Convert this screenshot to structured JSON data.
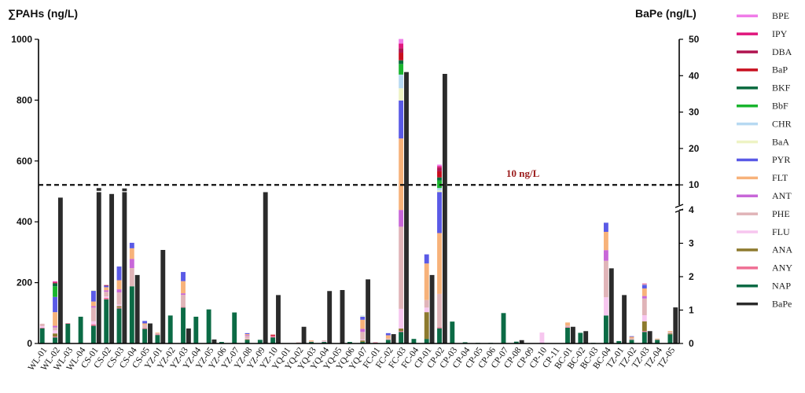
{
  "chart_data": {
    "type": "bar",
    "stacked": true,
    "left_axis": {
      "title": "∑PAHs (ng/L)",
      "ylim": [
        0,
        1000
      ],
      "ticks": [
        0,
        200,
        400,
        600,
        800,
        1000
      ]
    },
    "right_axis": {
      "title": "BaPe (ng/L)",
      "broken": true,
      "lower_segment": {
        "range": [
          0,
          4
        ],
        "ticks": [
          0,
          1,
          2,
          3,
          4
        ]
      },
      "upper_segment": {
        "range": [
          4,
          50
        ],
        "ticks": [
          10,
          20,
          30,
          40,
          50
        ]
      }
    },
    "reference_line": {
      "value": 10,
      "axis": "right",
      "label": "10 ng/L",
      "color": "#9b1c1c",
      "style": "dashed"
    },
    "categories": [
      "WL-01",
      "WL-02",
      "WL-03",
      "WL-04",
      "CS-01",
      "CS-02",
      "CS-03",
      "CS-04",
      "CS-05",
      "YZ-01",
      "YZ-02",
      "YZ-03",
      "YZ-04",
      "YZ-05",
      "YZ-06",
      "YZ-07",
      "YZ-08",
      "YZ-09",
      "YZ-10",
      "YQ-01",
      "YQ-02",
      "YQ-03",
      "YQ-04",
      "YQ-05",
      "YQ-06",
      "YQ-07",
      "FC-01",
      "FC-02",
      "FC-03",
      "FC-04",
      "CP-01",
      "CP-02",
      "CP-03",
      "CP-04",
      "CP-05",
      "CP-06",
      "CP-07",
      "CP-08",
      "CP-09",
      "CP-10",
      "CP-11",
      "BC-01",
      "BC-02",
      "BC-03",
      "BC-04",
      "TZ-01",
      "TZ-02",
      "TZ-03",
      "TZ-04",
      "TZ-05"
    ],
    "series_order": [
      "NAP",
      "ANY",
      "ANA",
      "FLU",
      "PHE",
      "ANT",
      "FLT",
      "PYR",
      "BaA",
      "CHR",
      "BbF",
      "BKF",
      "BaP",
      "DBA",
      "IPY",
      "BPE"
    ],
    "legend_order": [
      "BPE",
      "IPY",
      "DBA",
      "BaP",
      "BKF",
      "BbF",
      "CHR",
      "BaA",
      "PYR",
      "FLT",
      "ANT",
      "PHE",
      "FLU",
      "ANA",
      "ANY",
      "NAP",
      "BaPe"
    ],
    "colors": {
      "BPE": "#f07ce8",
      "IPY": "#e0177d",
      "DBA": "#b01350",
      "BaP": "#c80e1e",
      "BKF": "#0a6a3e",
      "BbF": "#19b52e",
      "CHR": "#b7d9f2",
      "BaA": "#eef3c4",
      "PYR": "#5a5ae6",
      "FLT": "#f7b27a",
      "ANT": "#c867d8",
      "PHE": "#e0b4b8",
      "FLU": "#f7c6ef",
      "ANA": "#8d7a2e",
      "ANY": "#ef6f94",
      "NAP": "#0b6b45",
      "BaPe": "#2b2b2b"
    },
    "series": [
      {
        "name": "NAP",
        "values": [
          50,
          20,
          65,
          88,
          58,
          145,
          115,
          188,
          48,
          28,
          92,
          118,
          88,
          112,
          5,
          102,
          12,
          12,
          20,
          0,
          2,
          5,
          5,
          0,
          5,
          5,
          2,
          12,
          38,
          15,
          15,
          50,
          72,
          4,
          2,
          2,
          100,
          6,
          0,
          0,
          0,
          52,
          35,
          2,
          92,
          8,
          12,
          38,
          12,
          30
        ]
      },
      {
        "name": "ANY",
        "values": [
          2,
          3,
          2,
          0,
          5,
          5,
          3,
          0,
          3,
          2,
          0,
          2,
          0,
          0,
          0,
          0,
          0,
          0,
          6,
          0,
          0,
          0,
          0,
          0,
          0,
          0,
          2,
          0,
          3,
          0,
          0,
          3,
          0,
          0,
          0,
          0,
          0,
          0,
          0,
          0,
          0,
          2,
          0,
          0,
          0,
          0,
          0,
          3,
          0,
          0
        ]
      },
      {
        "name": "ANA",
        "values": [
          0,
          10,
          0,
          0,
          0,
          0,
          5,
          0,
          0,
          0,
          0,
          0,
          0,
          0,
          0,
          0,
          2,
          0,
          0,
          0,
          0,
          0,
          0,
          0,
          0,
          5,
          0,
          0,
          8,
          0,
          88,
          0,
          0,
          0,
          0,
          0,
          0,
          0,
          0,
          0,
          0,
          0,
          0,
          0,
          0,
          0,
          0,
          32,
          0,
          3
        ]
      },
      {
        "name": "FLU",
        "values": [
          5,
          10,
          0,
          0,
          10,
          5,
          5,
          0,
          0,
          0,
          0,
          0,
          0,
          0,
          0,
          0,
          3,
          0,
          0,
          0,
          0,
          0,
          2,
          0,
          0,
          3,
          0,
          0,
          65,
          0,
          15,
          0,
          0,
          0,
          0,
          0,
          0,
          0,
          0,
          36,
          0,
          0,
          0,
          0,
          60,
          0,
          0,
          20,
          0,
          0
        ]
      },
      {
        "name": "PHE",
        "values": [
          8,
          10,
          0,
          0,
          45,
          15,
          40,
          60,
          10,
          4,
          0,
          40,
          0,
          0,
          0,
          0,
          8,
          0,
          0,
          0,
          2,
          2,
          3,
          0,
          0,
          25,
          0,
          5,
          270,
          0,
          25,
          110,
          0,
          0,
          0,
          0,
          0,
          0,
          0,
          0,
          0,
          5,
          0,
          0,
          120,
          0,
          5,
          55,
          2,
          5
        ]
      },
      {
        "name": "ANT",
        "values": [
          0,
          5,
          0,
          0,
          5,
          5,
          10,
          30,
          0,
          0,
          0,
          5,
          0,
          0,
          0,
          0,
          3,
          0,
          0,
          0,
          0,
          0,
          0,
          0,
          0,
          10,
          0,
          0,
          55,
          0,
          0,
          0,
          0,
          0,
          0,
          0,
          0,
          0,
          0,
          0,
          0,
          0,
          0,
          0,
          35,
          0,
          0,
          8,
          0,
          0
        ]
      },
      {
        "name": "FLT",
        "values": [
          0,
          45,
          0,
          0,
          15,
          10,
          30,
          35,
          5,
          2,
          0,
          40,
          0,
          0,
          0,
          0,
          3,
          0,
          0,
          0,
          0,
          3,
          0,
          0,
          0,
          30,
          0,
          10,
          235,
          0,
          120,
          200,
          0,
          0,
          0,
          0,
          0,
          0,
          0,
          0,
          0,
          10,
          0,
          0,
          60,
          0,
          5,
          25,
          2,
          3
        ]
      },
      {
        "name": "PYR",
        "values": [
          0,
          50,
          0,
          0,
          35,
          5,
          45,
          18,
          8,
          0,
          0,
          30,
          0,
          0,
          0,
          0,
          3,
          0,
          0,
          0,
          0,
          0,
          0,
          0,
          0,
          10,
          0,
          7,
          125,
          0,
          30,
          135,
          0,
          0,
          0,
          0,
          0,
          0,
          0,
          0,
          0,
          0,
          0,
          0,
          30,
          0,
          2,
          12,
          0,
          0
        ]
      },
      {
        "name": "BaA",
        "values": [
          0,
          0,
          0,
          0,
          2,
          0,
          0,
          0,
          0,
          0,
          0,
          0,
          0,
          0,
          0,
          0,
          0,
          0,
          0,
          0,
          0,
          0,
          0,
          0,
          0,
          2,
          0,
          0,
          40,
          0,
          0,
          5,
          0,
          0,
          0,
          0,
          0,
          0,
          0,
          0,
          0,
          0,
          0,
          0,
          0,
          0,
          0,
          2,
          0,
          0
        ]
      },
      {
        "name": "CHR",
        "values": [
          0,
          0,
          0,
          0,
          0,
          0,
          0,
          0,
          0,
          0,
          0,
          0,
          0,
          0,
          0,
          0,
          0,
          0,
          0,
          0,
          0,
          0,
          0,
          0,
          0,
          2,
          0,
          0,
          45,
          0,
          0,
          8,
          0,
          0,
          0,
          0,
          0,
          0,
          0,
          0,
          0,
          0,
          0,
          0,
          0,
          0,
          0,
          0,
          0,
          0
        ]
      },
      {
        "name": "BbF",
        "values": [
          0,
          35,
          0,
          0,
          0,
          0,
          0,
          0,
          0,
          0,
          0,
          0,
          0,
          0,
          0,
          0,
          0,
          0,
          0,
          0,
          0,
          0,
          0,
          0,
          0,
          0,
          0,
          0,
          35,
          0,
          0,
          25,
          0,
          0,
          0,
          0,
          0,
          0,
          0,
          0,
          0,
          0,
          0,
          0,
          0,
          0,
          0,
          0,
          0,
          0
        ]
      },
      {
        "name": "BKF",
        "values": [
          0,
          10,
          0,
          0,
          0,
          0,
          0,
          0,
          0,
          0,
          0,
          0,
          0,
          0,
          0,
          0,
          0,
          0,
          0,
          0,
          0,
          0,
          0,
          0,
          0,
          0,
          0,
          0,
          12,
          0,
          0,
          10,
          0,
          0,
          0,
          0,
          0,
          0,
          0,
          0,
          0,
          0,
          0,
          0,
          0,
          0,
          0,
          0,
          0,
          0
        ]
      },
      {
        "name": "BaP",
        "values": [
          0,
          2,
          0,
          0,
          0,
          2,
          0,
          0,
          0,
          0,
          0,
          0,
          0,
          0,
          0,
          0,
          0,
          0,
          3,
          0,
          0,
          0,
          0,
          0,
          0,
          0,
          0,
          0,
          25,
          0,
          0,
          20,
          0,
          0,
          0,
          0,
          0,
          0,
          0,
          0,
          0,
          0,
          0,
          0,
          0,
          0,
          0,
          0,
          0,
          0
        ]
      },
      {
        "name": "DBA",
        "values": [
          0,
          0,
          0,
          0,
          0,
          0,
          0,
          0,
          0,
          0,
          0,
          0,
          0,
          0,
          0,
          0,
          0,
          0,
          0,
          0,
          0,
          0,
          0,
          0,
          0,
          0,
          0,
          0,
          15,
          0,
          0,
          12,
          0,
          0,
          0,
          0,
          0,
          0,
          0,
          0,
          0,
          0,
          0,
          0,
          0,
          0,
          0,
          0,
          0,
          0
        ]
      },
      {
        "name": "IPY",
        "values": [
          0,
          3,
          0,
          0,
          0,
          0,
          0,
          0,
          0,
          0,
          0,
          0,
          0,
          0,
          0,
          0,
          0,
          0,
          0,
          0,
          0,
          0,
          0,
          0,
          0,
          0,
          0,
          0,
          15,
          0,
          0,
          5,
          0,
          0,
          0,
          0,
          0,
          0,
          0,
          0,
          0,
          0,
          0,
          0,
          0,
          0,
          0,
          2,
          0,
          0
        ]
      },
      {
        "name": "BPE",
        "values": [
          0,
          2,
          0,
          0,
          0,
          0,
          0,
          0,
          0,
          0,
          0,
          0,
          0,
          0,
          0,
          0,
          0,
          0,
          0,
          0,
          0,
          0,
          0,
          0,
          0,
          0,
          0,
          0,
          15,
          0,
          0,
          5,
          0,
          0,
          0,
          0,
          0,
          0,
          0,
          0,
          0,
          0,
          0,
          0,
          0,
          0,
          0,
          0,
          0,
          0
        ]
      },
      {
        "name": "BaPe",
        "axis": "right",
        "values": [
          0,
          6.5,
          0,
          0,
          8,
          7.5,
          8,
          2.05,
          0.6,
          2.8,
          0,
          0.45,
          0,
          0.12,
          0,
          0,
          0,
          8,
          1.45,
          0,
          0.5,
          0,
          1.57,
          1.6,
          0,
          1.92,
          0,
          0.28,
          41,
          0,
          2.05,
          40.5,
          0,
          0,
          0,
          0,
          0,
          0.1,
          0,
          0,
          0,
          0.5,
          0.37,
          0,
          2.25,
          1.45,
          0,
          0.37,
          0,
          1.08
        ]
      }
    ],
    "caps": [
      {
        "category": "CS-01",
        "axis": "right",
        "value": 8.8
      },
      {
        "category": "CS-03",
        "axis": "right",
        "value": 8.7
      }
    ]
  }
}
